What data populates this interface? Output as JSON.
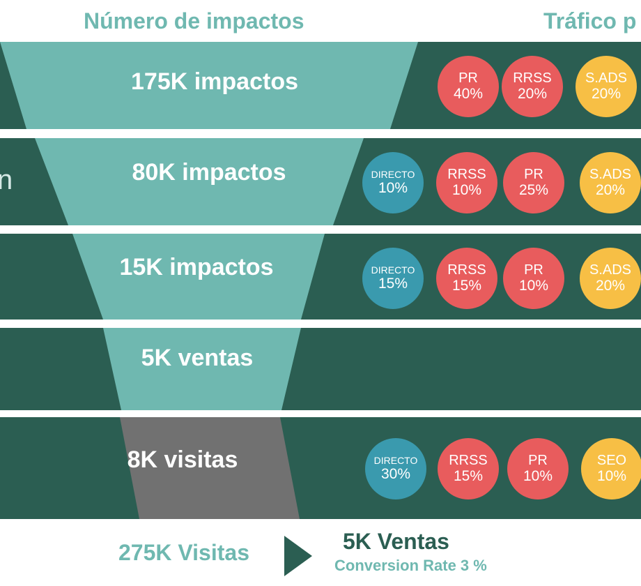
{
  "headers": {
    "left": "Número de impactos",
    "right": "Tráfico p"
  },
  "stages": [
    {
      "label": "175K impactos",
      "side_text": "",
      "sources": [
        {
          "name": "PR",
          "pct": "40%",
          "color": "red"
        },
        {
          "name": "RRSS",
          "pct": "20%",
          "color": "red"
        },
        {
          "name": "S.ADS",
          "pct": "20%",
          "color": "yellow"
        }
      ]
    },
    {
      "label": "80K impactos",
      "side_text": "n",
      "sources": [
        {
          "name": "DIRECTO",
          "pct": "10%",
          "color": "blue"
        },
        {
          "name": "RRSS",
          "pct": "10%",
          "color": "red"
        },
        {
          "name": "PR",
          "pct": "25%",
          "color": "red"
        },
        {
          "name": "S.ADS",
          "pct": "20%",
          "color": "yellow"
        }
      ]
    },
    {
      "label": "15K impactos",
      "side_text": "",
      "sources": [
        {
          "name": "DIRECTO",
          "pct": "15%",
          "color": "blue"
        },
        {
          "name": "RRSS",
          "pct": "15%",
          "color": "red"
        },
        {
          "name": "PR",
          "pct": "10%",
          "color": "red"
        },
        {
          "name": "S.ADS",
          "pct": "20%",
          "color": "yellow"
        }
      ]
    },
    {
      "label": "5K ventas",
      "side_text": "",
      "sources": []
    },
    {
      "label": "8K visitas",
      "side_text": "",
      "sources": [
        {
          "name": "DIRECTO",
          "pct": "30%",
          "color": "blue"
        },
        {
          "name": "RRSS",
          "pct": "15%",
          "color": "red"
        },
        {
          "name": "PR",
          "pct": "10%",
          "color": "red"
        },
        {
          "name": "SEO",
          "pct": "10%",
          "color": "yellow"
        }
      ]
    }
  ],
  "summary": {
    "visitas": "275K Visitas",
    "ventas": "5K Ventas",
    "conversion": "Conversion Rate 3 %"
  },
  "colors": {
    "band": "#2b5e52",
    "funnel": "#6fb8b0",
    "funnel_bottom": "#717171",
    "red": "#e85c5d",
    "yellow": "#f7bf45",
    "blue": "#3a9aae"
  }
}
